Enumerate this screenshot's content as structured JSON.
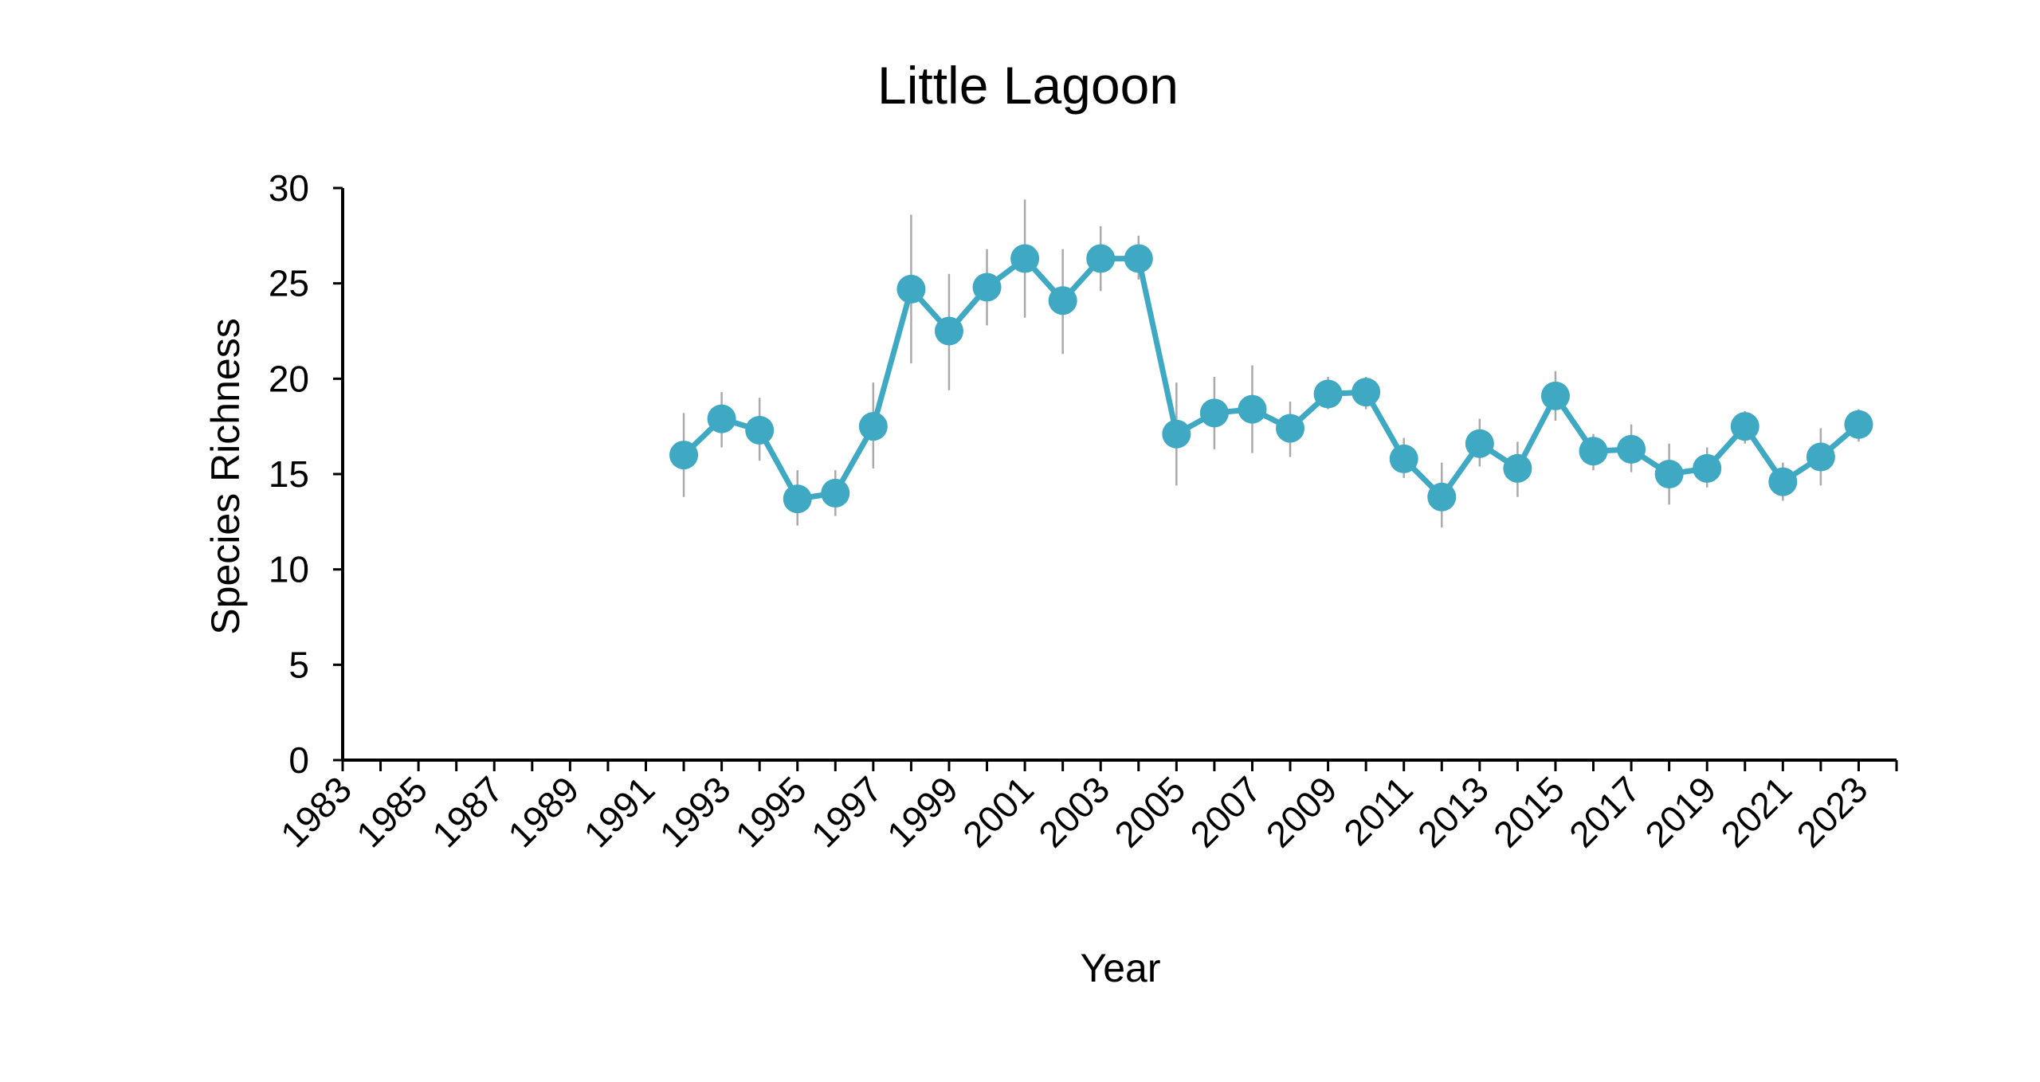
{
  "chart_data": {
    "type": "line",
    "title": "Little Lagoon",
    "xlabel": "Year",
    "ylabel": "Species Richness",
    "xlim": [
      1983,
      2024
    ],
    "ylim": [
      0,
      30
    ],
    "x_ticks": [
      1983,
      1985,
      1987,
      1989,
      1991,
      1993,
      1995,
      1997,
      1999,
      2001,
      2003,
      2005,
      2007,
      2009,
      2011,
      2013,
      2015,
      2017,
      2019,
      2021,
      2023
    ],
    "y_ticks": [
      0,
      5,
      10,
      15,
      20,
      25,
      30
    ],
    "grid": false,
    "legend": "none",
    "series": [
      {
        "color": "#3FA9C4",
        "error_color": "#AAAAAA",
        "points": [
          {
            "x": 1992,
            "y": 16.0,
            "low": 13.8,
            "high": 18.2
          },
          {
            "x": 1993,
            "y": 17.9,
            "low": 16.4,
            "high": 19.3
          },
          {
            "x": 1994,
            "y": 17.3,
            "low": 15.7,
            "high": 19.0
          },
          {
            "x": 1995,
            "y": 13.7,
            "low": 12.3,
            "high": 15.2
          },
          {
            "x": 1996,
            "y": 14.0,
            "low": 12.8,
            "high": 15.2
          },
          {
            "x": 1997,
            "y": 17.5,
            "low": 15.3,
            "high": 19.8
          },
          {
            "x": 1998,
            "y": 24.7,
            "low": 20.8,
            "high": 28.6
          },
          {
            "x": 1999,
            "y": 22.5,
            "low": 19.4,
            "high": 25.5
          },
          {
            "x": 2000,
            "y": 24.8,
            "low": 22.8,
            "high": 26.8
          },
          {
            "x": 2001,
            "y": 26.3,
            "low": 23.2,
            "high": 29.4
          },
          {
            "x": 2002,
            "y": 24.1,
            "low": 21.3,
            "high": 26.8
          },
          {
            "x": 2003,
            "y": 26.3,
            "low": 24.6,
            "high": 28.0
          },
          {
            "x": 2004,
            "y": 26.3,
            "low": 25.2,
            "high": 27.5
          },
          {
            "x": 2005,
            "y": 17.1,
            "low": 14.4,
            "high": 19.8
          },
          {
            "x": 2006,
            "y": 18.2,
            "low": 16.3,
            "high": 20.1
          },
          {
            "x": 2007,
            "y": 18.4,
            "low": 16.1,
            "high": 20.7
          },
          {
            "x": 2008,
            "y": 17.4,
            "low": 15.9,
            "high": 18.8
          },
          {
            "x": 2009,
            "y": 19.2,
            "low": 18.4,
            "high": 20.1
          },
          {
            "x": 2010,
            "y": 19.3,
            "low": 18.4,
            "high": 20.1
          },
          {
            "x": 2011,
            "y": 15.8,
            "low": 14.8,
            "high": 16.9
          },
          {
            "x": 2012,
            "y": 13.8,
            "low": 12.2,
            "high": 15.6
          },
          {
            "x": 2013,
            "y": 16.6,
            "low": 15.4,
            "high": 17.9
          },
          {
            "x": 2014,
            "y": 15.3,
            "low": 13.8,
            "high": 16.7
          },
          {
            "x": 2015,
            "y": 19.1,
            "low": 17.8,
            "high": 20.4
          },
          {
            "x": 2016,
            "y": 16.2,
            "low": 15.2,
            "high": 17.1
          },
          {
            "x": 2017,
            "y": 16.3,
            "low": 15.1,
            "high": 17.6
          },
          {
            "x": 2018,
            "y": 15.0,
            "low": 13.4,
            "high": 16.6
          },
          {
            "x": 2019,
            "y": 15.3,
            "low": 14.3,
            "high": 16.4
          },
          {
            "x": 2020,
            "y": 17.5,
            "low": 16.6,
            "high": 18.3
          },
          {
            "x": 2021,
            "y": 14.6,
            "low": 13.6,
            "high": 15.6
          },
          {
            "x": 2022,
            "y": 15.9,
            "low": 14.4,
            "high": 17.4
          },
          {
            "x": 2023,
            "y": 17.6,
            "low": 16.7,
            "high": 18.4
          }
        ]
      }
    ]
  }
}
